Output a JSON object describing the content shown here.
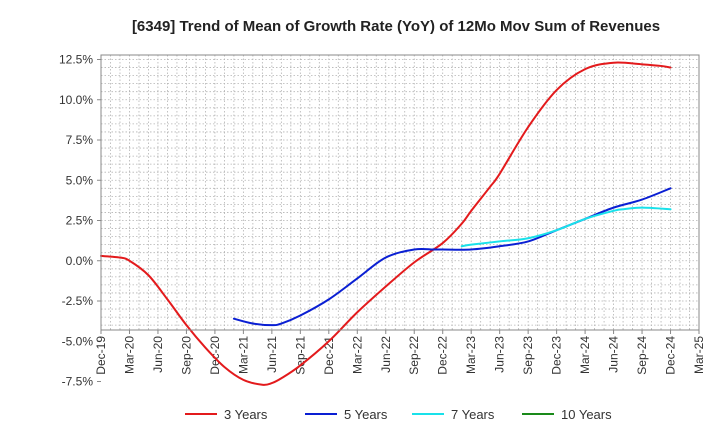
{
  "chart_data": {
    "type": "line",
    "title": "[6349]  Trend of Mean of Growth Rate (YoY) of 12Mo Mov Sum of Revenues",
    "xlabel": "",
    "ylabel": "",
    "ylim": [
      -8.5,
      12.5
    ],
    "y_ticks": [
      12.5,
      10.0,
      7.5,
      5.0,
      2.5,
      0.0,
      -2.5,
      -5.0,
      -7.5
    ],
    "y_tick_labels": [
      "12.5%",
      "10.0%",
      "7.5%",
      "5.0%",
      "2.5%",
      "0.0%",
      "-2.5%",
      "-5.0%",
      "-7.5%"
    ],
    "x_range": [
      0,
      63
    ],
    "x_ticks": [
      0,
      3,
      6,
      9,
      12,
      15,
      18,
      21,
      24,
      27,
      30,
      33,
      36,
      39,
      42,
      45,
      48,
      51,
      54,
      57,
      60,
      63
    ],
    "x_tick_labels": [
      "Dec-19",
      "Mar-20",
      "Jun-20",
      "Sep-20",
      "Dec-20",
      "Mar-21",
      "Jun-21",
      "Sep-21",
      "Dec-21",
      "Mar-22",
      "Jun-22",
      "Sep-22",
      "Dec-22",
      "Mar-23",
      "Jun-23",
      "Sep-23",
      "Dec-23",
      "Mar-24",
      "Jun-24",
      "Sep-24",
      "Dec-24",
      "Mar-25"
    ],
    "grid": true,
    "legend_position": "bottom",
    "series": [
      {
        "name": "3 Years",
        "color": "#e31a1c",
        "x": [
          0,
          2,
          3,
          5,
          7,
          9,
          11,
          13,
          15,
          17,
          18,
          19,
          21,
          24,
          27,
          30,
          33,
          36,
          38,
          39,
          41,
          42,
          45,
          48,
          51,
          54,
          57,
          59,
          60
        ],
        "y": [
          0.3,
          0.2,
          0.0,
          -0.9,
          -2.4,
          -4.0,
          -5.4,
          -6.6,
          -7.4,
          -7.7,
          -7.6,
          -7.3,
          -6.5,
          -5.0,
          -3.2,
          -1.6,
          -0.1,
          1.1,
          2.3,
          3.1,
          4.6,
          5.4,
          8.3,
          10.6,
          11.9,
          12.3,
          12.2,
          12.1,
          12.0
        ]
      },
      {
        "name": "5 Years",
        "color": "#0a1fd3",
        "x": [
          14,
          16,
          18,
          19,
          21,
          24,
          27,
          30,
          33,
          35,
          36,
          39,
          42,
          45,
          48,
          51,
          54,
          57,
          60
        ],
        "y": [
          -3.6,
          -3.9,
          -4.0,
          -3.9,
          -3.4,
          -2.4,
          -1.1,
          0.2,
          0.7,
          0.7,
          0.7,
          0.7,
          0.9,
          1.2,
          1.9,
          2.6,
          3.3,
          3.8,
          4.5
        ]
      },
      {
        "name": "7 Years",
        "color": "#19e1ea",
        "x": [
          38,
          39,
          42,
          45,
          48,
          51,
          54,
          55,
          57,
          60
        ],
        "y": [
          0.9,
          1.0,
          1.2,
          1.4,
          1.9,
          2.6,
          3.1,
          3.2,
          3.3,
          3.2
        ]
      },
      {
        "name": "10 Years",
        "color": "#1a8a1a",
        "x": [],
        "y": []
      }
    ]
  }
}
